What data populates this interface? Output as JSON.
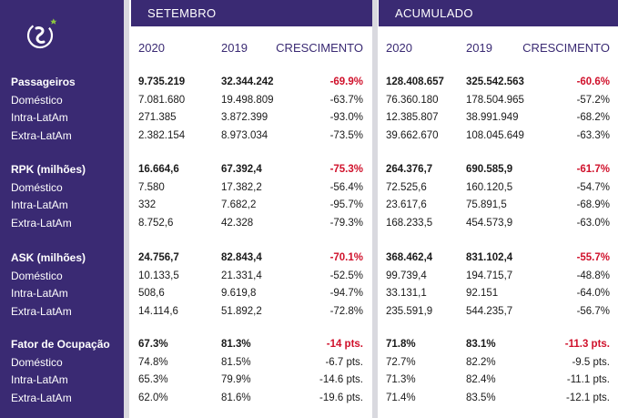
{
  "panels": {
    "left": "SETEMBRO",
    "right": "ACUMULADO"
  },
  "col_headers": [
    "2020",
    "2019",
    "CRESCIMENTO"
  ],
  "groups": [
    {
      "rows": [
        {
          "label": "Passageiros",
          "bold": true,
          "left": [
            "9.735.219",
            "32.344.242",
            "-69.9%"
          ],
          "right": [
            "128.408.657",
            "325.542.563",
            "-60.6%"
          ]
        },
        {
          "label": "Doméstico",
          "bold": false,
          "left": [
            "7.081.680",
            "19.498.809",
            "-63.7%"
          ],
          "right": [
            "76.360.180",
            "178.504.965",
            "-57.2%"
          ]
        },
        {
          "label": "Intra-LatAm",
          "bold": false,
          "left": [
            "271.385",
            "3.872.399",
            "-93.0%"
          ],
          "right": [
            "12.385.807",
            "38.991.949",
            "-68.2%"
          ]
        },
        {
          "label": "Extra-LatAm",
          "bold": false,
          "left": [
            "2.382.154",
            "8.973.034",
            "-73.5%"
          ],
          "right": [
            "39.662.670",
            "108.045.649",
            "-63.3%"
          ]
        }
      ]
    },
    {
      "rows": [
        {
          "label": "RPK (milhões)",
          "bold": true,
          "left": [
            "16.664,6",
            "67.392,4",
            "-75.3%"
          ],
          "right": [
            "264.376,7",
            "690.585,9",
            "-61.7%"
          ]
        },
        {
          "label": "Doméstico",
          "bold": false,
          "left": [
            "7.580",
            "17.382,2",
            "-56.4%"
          ],
          "right": [
            "72.525,6",
            "160.120,5",
            "-54.7%"
          ]
        },
        {
          "label": "Intra-LatAm",
          "bold": false,
          "left": [
            "332",
            "7.682,2",
            "-95.7%"
          ],
          "right": [
            "23.617,6",
            "75.891,5",
            "-68.9%"
          ]
        },
        {
          "label": "Extra-LatAm",
          "bold": false,
          "left": [
            "8.752,6",
            "42.328",
            "-79.3%"
          ],
          "right": [
            "168.233,5",
            "454.573,9",
            "-63.0%"
          ]
        }
      ]
    },
    {
      "rows": [
        {
          "label": "ASK (milhões)",
          "bold": true,
          "left": [
            "24.756,7",
            "82.843,4",
            "-70.1%"
          ],
          "right": [
            "368.462,4",
            "831.102,4",
            "-55.7%"
          ]
        },
        {
          "label": "Doméstico",
          "bold": false,
          "left": [
            "10.133,5",
            "21.331,4",
            "-52.5%"
          ],
          "right": [
            "99.739,4",
            "194.715,7",
            "-48.8%"
          ]
        },
        {
          "label": "Intra-LatAm",
          "bold": false,
          "left": [
            "508,6",
            "9.619,8",
            "-94.7%"
          ],
          "right": [
            "33.131,1",
            "92.151",
            "-64.0%"
          ]
        },
        {
          "label": "Extra-LatAm",
          "bold": false,
          "left": [
            "14.114,6",
            "51.892,2",
            "-72.8%"
          ],
          "right": [
            "235.591,9",
            "544.235,7",
            "-56.7%"
          ]
        }
      ]
    },
    {
      "rows": [
        {
          "label": "Fator de Ocupação",
          "bold": true,
          "left": [
            "67.3%",
            "81.3%",
            "-14 pts."
          ],
          "right": [
            "71.8%",
            "83.1%",
            "-11.3 pts."
          ]
        },
        {
          "label": "Doméstico",
          "bold": false,
          "left": [
            "74.8%",
            "81.5%",
            "-6.7 pts."
          ],
          "right": [
            "72.7%",
            "82.2%",
            "-9.5 pts."
          ]
        },
        {
          "label": "Intra-LatAm",
          "bold": false,
          "left": [
            "65.3%",
            "79.9%",
            "-14.6 pts."
          ],
          "right": [
            "71.3%",
            "82.4%",
            "-11.1 pts."
          ]
        },
        {
          "label": "Extra-LatAm",
          "bold": false,
          "left": [
            "62.0%",
            "81.6%",
            "-19.6 pts."
          ],
          "right": [
            "71.4%",
            "83.5%",
            "-12.1 pts."
          ]
        }
      ]
    }
  ],
  "colors": {
    "brand_purple": "#3a2a73",
    "negative_red": "#d0112b",
    "divider_gray": "#d9d9df"
  },
  "icons": {
    "logo": "latam-logo-icon"
  }
}
